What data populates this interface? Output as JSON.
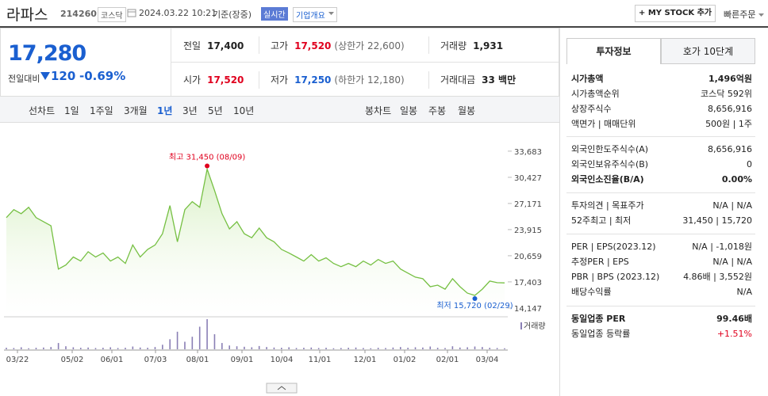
{
  "header": {
    "name": "라파스",
    "code": "214260",
    "market": "코스닥",
    "datetime": "2024.03.22 10:21",
    "basis": "기준(장중)",
    "realtime": "실시간",
    "company_info": "기업개요",
    "mystock": "+ MY STOCK 추가",
    "quick_order": "빠른주문"
  },
  "price": {
    "current": "17,280",
    "change_label": "전일대비",
    "change": "120",
    "change_rate": "-0.69%"
  },
  "quote": [
    [
      {
        "label": "전일",
        "value": "17,400"
      },
      {
        "label": "고가",
        "value": "17,520",
        "note": "(상한가 22,600)",
        "color": "#e0001e"
      },
      {
        "label": "거래량",
        "value": "1,931"
      }
    ],
    [
      {
        "label": "시가",
        "value": "17,520",
        "color": "#e0001e"
      },
      {
        "label": "저가",
        "value": "17,250",
        "note": "(하한가 12,180)",
        "color": "#1a5fd0"
      },
      {
        "label": "거래대금",
        "value": "33 백만"
      }
    ]
  ],
  "periods": {
    "line_label": "선차트",
    "line": [
      "1일",
      "1주일",
      "3개월",
      "1년",
      "3년",
      "5년",
      "10년"
    ],
    "active": 3,
    "candle_label": "봉차트",
    "candle": [
      "일봉",
      "주봉",
      "월봉"
    ]
  },
  "chart": {
    "type": "line",
    "color": "#76c043",
    "area_color": "#d8f0c4",
    "values": [
      25400,
      26400,
      25900,
      26700,
      25400,
      24900,
      24400,
      19000,
      19500,
      20500,
      20000,
      21150,
      20500,
      21000,
      20000,
      20500,
      19700,
      22000,
      20500,
      21450,
      22000,
      23400,
      26900,
      22400,
      26400,
      27400,
      26700,
      31450,
      28800,
      25900,
      24000,
      24900,
      23400,
      22900,
      24100,
      22900,
      22400,
      21450,
      21000,
      20500,
      20000,
      20800,
      20000,
      20400,
      19700,
      19300,
      19700,
      19300,
      20000,
      19500,
      20200,
      19700,
      20000,
      19000,
      18500,
      18000,
      17800,
      16800,
      17000,
      16500,
      17800,
      16800,
      16000,
      15720,
      16500,
      17500,
      17300,
      17280
    ],
    "volume": [
      60,
      50,
      80,
      40,
      60,
      70,
      90,
      250,
      120,
      80,
      60,
      70,
      50,
      60,
      80,
      50,
      60,
      110,
      70,
      60,
      90,
      180,
      400,
      700,
      300,
      500,
      900,
      1200,
      600,
      250,
      150,
      120,
      100,
      80,
      130,
      90,
      70,
      60,
      80,
      50,
      60,
      70,
      50,
      60,
      40,
      50,
      60,
      70,
      50,
      40,
      60,
      50,
      70,
      90,
      60,
      80,
      70,
      110,
      60,
      50,
      120,
      70,
      80,
      110,
      90,
      60,
      50,
      40
    ],
    "ylim": [
      13250,
      35250
    ],
    "yticks": [
      {
        "value": 33683,
        "label": "33,683"
      },
      {
        "value": 30427,
        "label": "30,427"
      },
      {
        "value": 27171,
        "label": "27,171"
      },
      {
        "value": 23915,
        "label": "23,915"
      },
      {
        "value": 20659,
        "label": "20,659"
      },
      {
        "value": 17403,
        "label": "17,403"
      },
      {
        "value": 14147,
        "label": "14,147"
      }
    ],
    "x_labels": [
      "03/22",
      "05/02",
      "06/01",
      "07/03",
      "08/01",
      "09/01",
      "10/04",
      "11/01",
      "12/01",
      "01/02",
      "02/01",
      "03/04"
    ],
    "high_label": "최고 31,450 (08/09)",
    "low_label": "최저 15,720 (02/29)",
    "volume_label": "거래량"
  },
  "tabs": [
    "투자정보",
    "호가 10단계"
  ],
  "info": [
    [
      {
        "label": "시가총액",
        "value": "1,496억원",
        "bold": true
      },
      {
        "label": "시가총액순위",
        "value": "코스닥 592위"
      },
      {
        "label": "상장주식수",
        "value": "8,656,916"
      },
      {
        "label": "액면가 | 매매단위",
        "value": "500원 | 1주"
      }
    ],
    [
      {
        "label": "외국인한도주식수(A)",
        "value": "8,656,916"
      },
      {
        "label": "외국인보유주식수(B)",
        "value": "0"
      },
      {
        "label": "외국인소진율(B/A)",
        "value": "0.00%",
        "bold": true
      }
    ],
    [
      {
        "label": "투자의견 | 목표주가",
        "value": "N/A | N/A"
      },
      {
        "label": "52주최고 | 최저",
        "value": "31,450 | 15,720"
      }
    ],
    [
      {
        "label": "PER | EPS(2023.12)",
        "value": "N/A | -1,018원"
      },
      {
        "label": "추정PER | EPS",
        "value": "N/A | N/A"
      },
      {
        "label": "PBR | BPS (2023.12)",
        "value": "4.86배 | 3,552원"
      },
      {
        "label": "배당수익률",
        "value": "N/A"
      }
    ],
    [
      {
        "label": "동일업종 PER",
        "value": "99.46배",
        "bold": true
      },
      {
        "label": "동일업종 등락률",
        "value": "+1.51%",
        "color": "#e0001e"
      }
    ]
  ]
}
